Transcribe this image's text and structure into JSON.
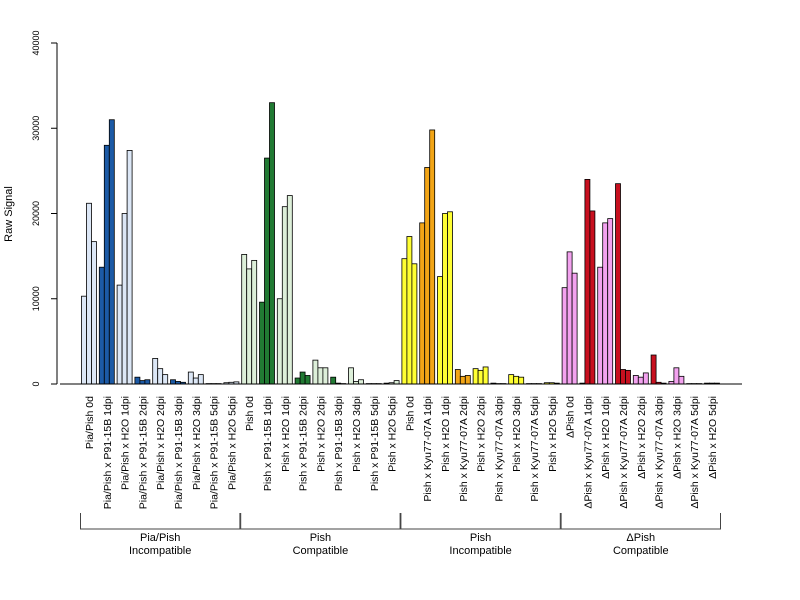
{
  "chart_data": {
    "type": "bar",
    "ylabel": "Raw Signal",
    "ylim": [
      0,
      40000
    ],
    "yticks": [
      "0",
      "10000",
      "20000",
      "30000",
      "40000"
    ],
    "grid": false,
    "legend": "none",
    "categories": [
      {
        "label": "Pia/Pish 0d",
        "group": 0,
        "color": "#DCE7F6",
        "values": [
          10300,
          21200,
          16700
        ]
      },
      {
        "label": "Pia/Pish x P91-15B 1dpi",
        "group": 0,
        "color": "#1C5AA6",
        "values": [
          13700,
          28000,
          31000
        ]
      },
      {
        "label": "Pia/Pish x H2O 1dpi",
        "group": 0,
        "color": "#DCE7F6",
        "values": [
          11600,
          20000,
          27400
        ]
      },
      {
        "label": "Pia/Pish x P91-15B 2dpi",
        "group": 0,
        "color": "#1C5AA6",
        "values": [
          800,
          400,
          500
        ]
      },
      {
        "label": "Pia/Pish x H2O 2dpi",
        "group": 0,
        "color": "#DCE7F6",
        "values": [
          3000,
          1800,
          1100
        ]
      },
      {
        "label": "Pia/Pish x P91-15B 3dpi",
        "group": 0,
        "color": "#1C5AA6",
        "values": [
          500,
          300,
          200
        ]
      },
      {
        "label": "Pia/Pish x H2O 3dpi",
        "group": 0,
        "color": "#DCE7F6",
        "values": [
          1400,
          700,
          1100
        ]
      },
      {
        "label": "Pia/Pish x P91-15B 5dpi",
        "group": 0,
        "color": "#1C5AA6",
        "values": [
          50,
          50,
          50
        ]
      },
      {
        "label": "Pia/Pish x H2O 5dpi",
        "group": 0,
        "color": "#DCE7F6",
        "values": [
          150,
          200,
          250
        ]
      },
      {
        "label": "Pish 0d",
        "group": 1,
        "color": "#DDEFD9",
        "values": [
          15200,
          13500,
          14500
        ]
      },
      {
        "label": "Pish x P91-15B 1dpi",
        "group": 1,
        "color": "#217A33",
        "values": [
          9600,
          26500,
          33000
        ]
      },
      {
        "label": "Pish x H2O 1dpi",
        "group": 1,
        "color": "#DDEFD9",
        "values": [
          10000,
          20800,
          22100
        ]
      },
      {
        "label": "Pish x P91-15B 2dpi",
        "group": 1,
        "color": "#217A33",
        "values": [
          700,
          1400,
          1000
        ]
      },
      {
        "label": "Pish x H2O 2dpi",
        "group": 1,
        "color": "#DDEFD9",
        "values": [
          2800,
          1900,
          1900
        ]
      },
      {
        "label": "Pish x P91-15B 3dpi",
        "group": 1,
        "color": "#217A33",
        "values": [
          800,
          100,
          50
        ]
      },
      {
        "label": "Pish x H2O 3dpi",
        "group": 1,
        "color": "#DDEFD9",
        "values": [
          1900,
          300,
          500
        ]
      },
      {
        "label": "Pish x P91-15B 5dpi",
        "group": 1,
        "color": "#217A33",
        "values": [
          50,
          50,
          50
        ]
      },
      {
        "label": "Pish x H2O 5dpi",
        "group": 1,
        "color": "#DDEFD9",
        "values": [
          100,
          150,
          400
        ]
      },
      {
        "label": "Pish 0d",
        "group": 2,
        "color": "#FFFF33",
        "values": [
          14700,
          17300,
          14100
        ]
      },
      {
        "label": "Pish x Kyu77-07A 1dpi",
        "group": 2,
        "color": "#F2A516",
        "values": [
          18900,
          25400,
          29800
        ]
      },
      {
        "label": "Pish x H2O 1dpi",
        "group": 2,
        "color": "#FFFF33",
        "values": [
          12600,
          20000,
          20200
        ]
      },
      {
        "label": "Pish x Kyu77-07A 2dpi",
        "group": 2,
        "color": "#F2A516",
        "values": [
          1700,
          900,
          1000
        ]
      },
      {
        "label": "Pish x H2O 2dpi",
        "group": 2,
        "color": "#FFFF33",
        "values": [
          1800,
          1600,
          2000
        ]
      },
      {
        "label": "Pish x Kyu77-07A 3dpi",
        "group": 2,
        "color": "#F2A516",
        "values": [
          100,
          50,
          50
        ]
      },
      {
        "label": "Pish x H2O 3dpi",
        "group": 2,
        "color": "#FFFF33",
        "values": [
          1100,
          900,
          800
        ]
      },
      {
        "label": "Pish x Kyu77-07A 5dpi",
        "group": 2,
        "color": "#F2A516",
        "values": [
          50,
          50,
          50
        ]
      },
      {
        "label": "Pish x H2O 5dpi",
        "group": 2,
        "color": "#FFFF33",
        "values": [
          150,
          150,
          100
        ]
      },
      {
        "label": "ΔPish 0d",
        "group": 3,
        "color": "#F3A2EF",
        "values": [
          11300,
          15500,
          13000
        ]
      },
      {
        "label": "ΔPish x Kyu77-07A 1dpi",
        "group": 3,
        "color": "#C8101F",
        "values": [
          100,
          24000,
          20300
        ]
      },
      {
        "label": "ΔPish x H2O 1dpi",
        "group": 3,
        "color": "#F3A2EF",
        "values": [
          13700,
          18900,
          19400
        ]
      },
      {
        "label": "ΔPish x Kyu77-07A 2dpi",
        "group": 3,
        "color": "#C8101F",
        "values": [
          23500,
          1700,
          1600
        ]
      },
      {
        "label": "ΔPish x H2O 2dpi",
        "group": 3,
        "color": "#F3A2EF",
        "values": [
          1000,
          800,
          1300
        ]
      },
      {
        "label": "ΔPish x Kyu77-07A 3dpi",
        "group": 3,
        "color": "#C8101F",
        "values": [
          3400,
          200,
          100
        ]
      },
      {
        "label": "ΔPish x H2O 3dpi",
        "group": 3,
        "color": "#F3A2EF",
        "values": [
          300,
          1900,
          900
        ]
      },
      {
        "label": "ΔPish x Kyu77-07A 5dpi",
        "group": 3,
        "color": "#C8101F",
        "values": [
          50,
          50,
          50
        ]
      },
      {
        "label": "ΔPish x H2O 5dpi",
        "group": 3,
        "color": "#F3A2EF",
        "values": [
          100,
          100,
          100
        ]
      }
    ],
    "groups": [
      {
        "line1": "Pia/Pish",
        "line2": "Incompatible"
      },
      {
        "line1": "Pish",
        "line2": "Compatible"
      },
      {
        "line1": "Pish",
        "line2": "Incompatible"
      },
      {
        "line1": "ΔPish",
        "line2": "Compatible"
      }
    ]
  }
}
